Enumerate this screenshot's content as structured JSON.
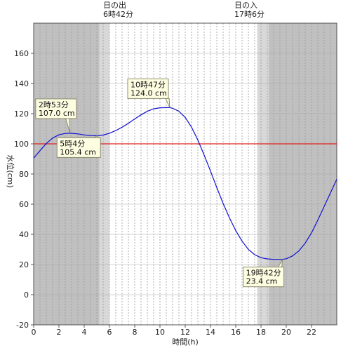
{
  "chart_data": {
    "type": "line",
    "xlabel": "時間(h)",
    "ylabel": "水位(cm)",
    "xlim": [
      0,
      24
    ],
    "ylim": [
      -20,
      180
    ],
    "xticks": [
      0,
      2,
      4,
      6,
      8,
      10,
      12,
      14,
      16,
      18,
      20,
      22
    ],
    "yticks": [
      -20,
      0,
      20,
      40,
      60,
      80,
      100,
      120,
      140,
      160
    ],
    "reference_line": {
      "value": 100,
      "color": "#e02020"
    },
    "line_color": "#1010d0",
    "sunrise": {
      "label": "日の出",
      "time_label": "6時42分",
      "hour": 6.7
    },
    "sunset": {
      "label": "日の入",
      "time_label": "17時6分",
      "hour": 17.1
    },
    "shading": {
      "night_color": "#c0c0c0",
      "twilight_color": "#d8d8d8",
      "day_color": "#ffffff",
      "bands": [
        {
          "from": 0,
          "to": 5.2,
          "kind": "night"
        },
        {
          "from": 5.2,
          "to": 6.0,
          "kind": "twilight"
        },
        {
          "from": 17.7,
          "to": 18.6,
          "kind": "twilight"
        },
        {
          "from": 18.6,
          "to": 24,
          "kind": "night"
        }
      ]
    },
    "series": [
      {
        "x": [
          0,
          0.5,
          1,
          1.5,
          2,
          2.5,
          2.88,
          3.5,
          4,
          4.5,
          5.07,
          5.5,
          6,
          6.5,
          7,
          7.5,
          8,
          8.5,
          9,
          9.5,
          10,
          10.5,
          10.78,
          11,
          11.5,
          12,
          12.5,
          13,
          13.5,
          14,
          14.5,
          15,
          15.5,
          16,
          16.5,
          17,
          17.5,
          18,
          18.5,
          19,
          19.5,
          19.7,
          20,
          20.5,
          21,
          21.5,
          22,
          22.5,
          23,
          23.5,
          24
        ],
        "values": [
          90.5,
          95.5,
          100.2,
          103.8,
          106.0,
          106.9,
          107.0,
          106.6,
          105.9,
          105.5,
          105.4,
          105.8,
          107.0,
          108.8,
          111.0,
          113.6,
          116.5,
          119.2,
          121.6,
          123.2,
          123.9,
          124.0,
          124.0,
          123.6,
          121.6,
          117.5,
          111.0,
          102.5,
          92.5,
          82.0,
          71.0,
          60.5,
          51.0,
          42.5,
          35.5,
          30.0,
          26.5,
          24.5,
          23.7,
          23.4,
          23.4,
          23.4,
          23.8,
          25.7,
          29.0,
          34.2,
          41.0,
          49.5,
          58.5,
          67.5,
          76.5
        ]
      }
    ],
    "annotations": [
      {
        "line1": "2時53分",
        "line2": "107.0 cm",
        "x": 2.88,
        "y": 107.0
      },
      {
        "line1": "5時4分",
        "line2": "105.4 cm",
        "x": 5.07,
        "y": 105.4
      },
      {
        "line1": "10時47分",
        "line2": "124.0 cm",
        "x": 10.78,
        "y": 124.0
      },
      {
        "line1": "19時42分",
        "line2": "23.4 cm",
        "x": 19.7,
        "y": 23.4
      }
    ]
  }
}
